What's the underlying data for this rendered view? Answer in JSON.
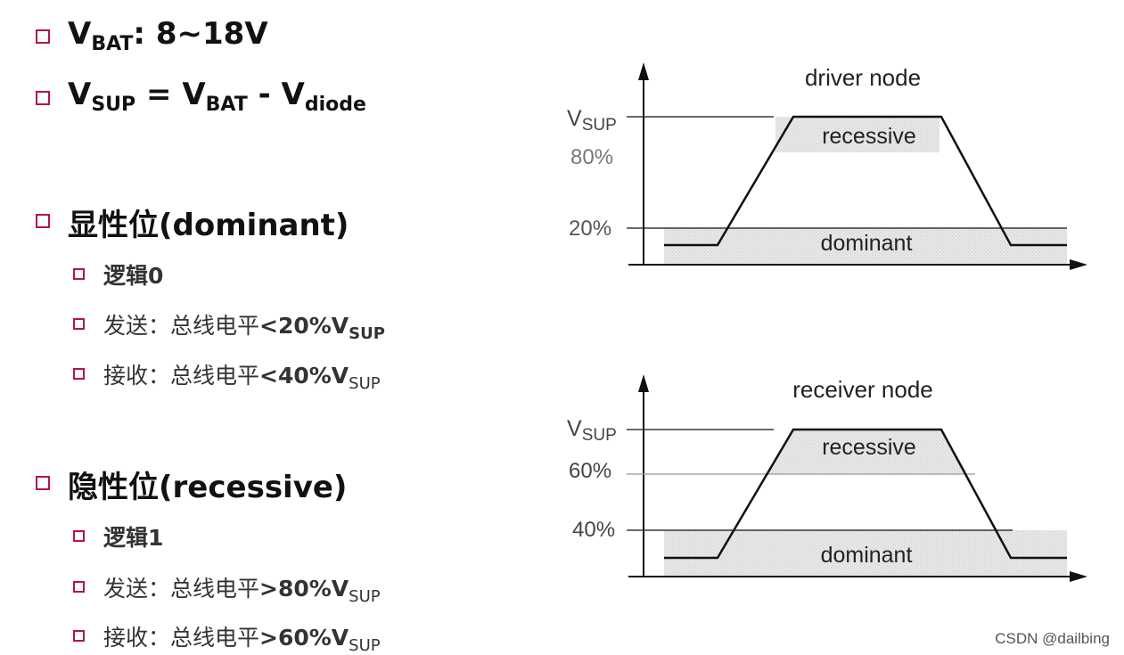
{
  "left": {
    "vbat": {
      "v": "V",
      "sub": "BAT",
      "rest": ": 8~18V"
    },
    "vsup": {
      "v1": "V",
      "sub1": "SUP",
      "eq": " = V",
      "sub2": "BAT",
      "minus": " - V",
      "sub3": "diode"
    },
    "dominant": {
      "title": "显性位(dominant)",
      "logic": "逻辑0",
      "send_prefix": "发送：总线电平",
      "send_value": "<20%V",
      "recv_prefix": "接收：总线电平",
      "recv_value": "<40%V",
      "sub": "SUP"
    },
    "recessive": {
      "title": "隐性位(recessive)",
      "logic": "逻辑1",
      "send_prefix": "发送：总线电平",
      "send_value": ">80%V",
      "recv_prefix": "接收：总线电平",
      "recv_value": ">60%V",
      "sub": "SUP"
    }
  },
  "diagrams": {
    "driver": {
      "title": "driver node",
      "vsup_v": "V",
      "vsup_sub": "SUP",
      "high_label": "80%",
      "low_label": "20%",
      "recessive": "recessive",
      "dominant": "dominant"
    },
    "receiver": {
      "title": "receiver node",
      "vsup_v": "V",
      "vsup_sub": "SUP",
      "high_label": "60%",
      "low_label": "40%",
      "recessive": "recessive",
      "dominant": "dominant"
    }
  },
  "watermark": "CSDN @dailbing",
  "colors": {
    "bullet": "#b3163f",
    "shade": "#e3e3e3"
  }
}
